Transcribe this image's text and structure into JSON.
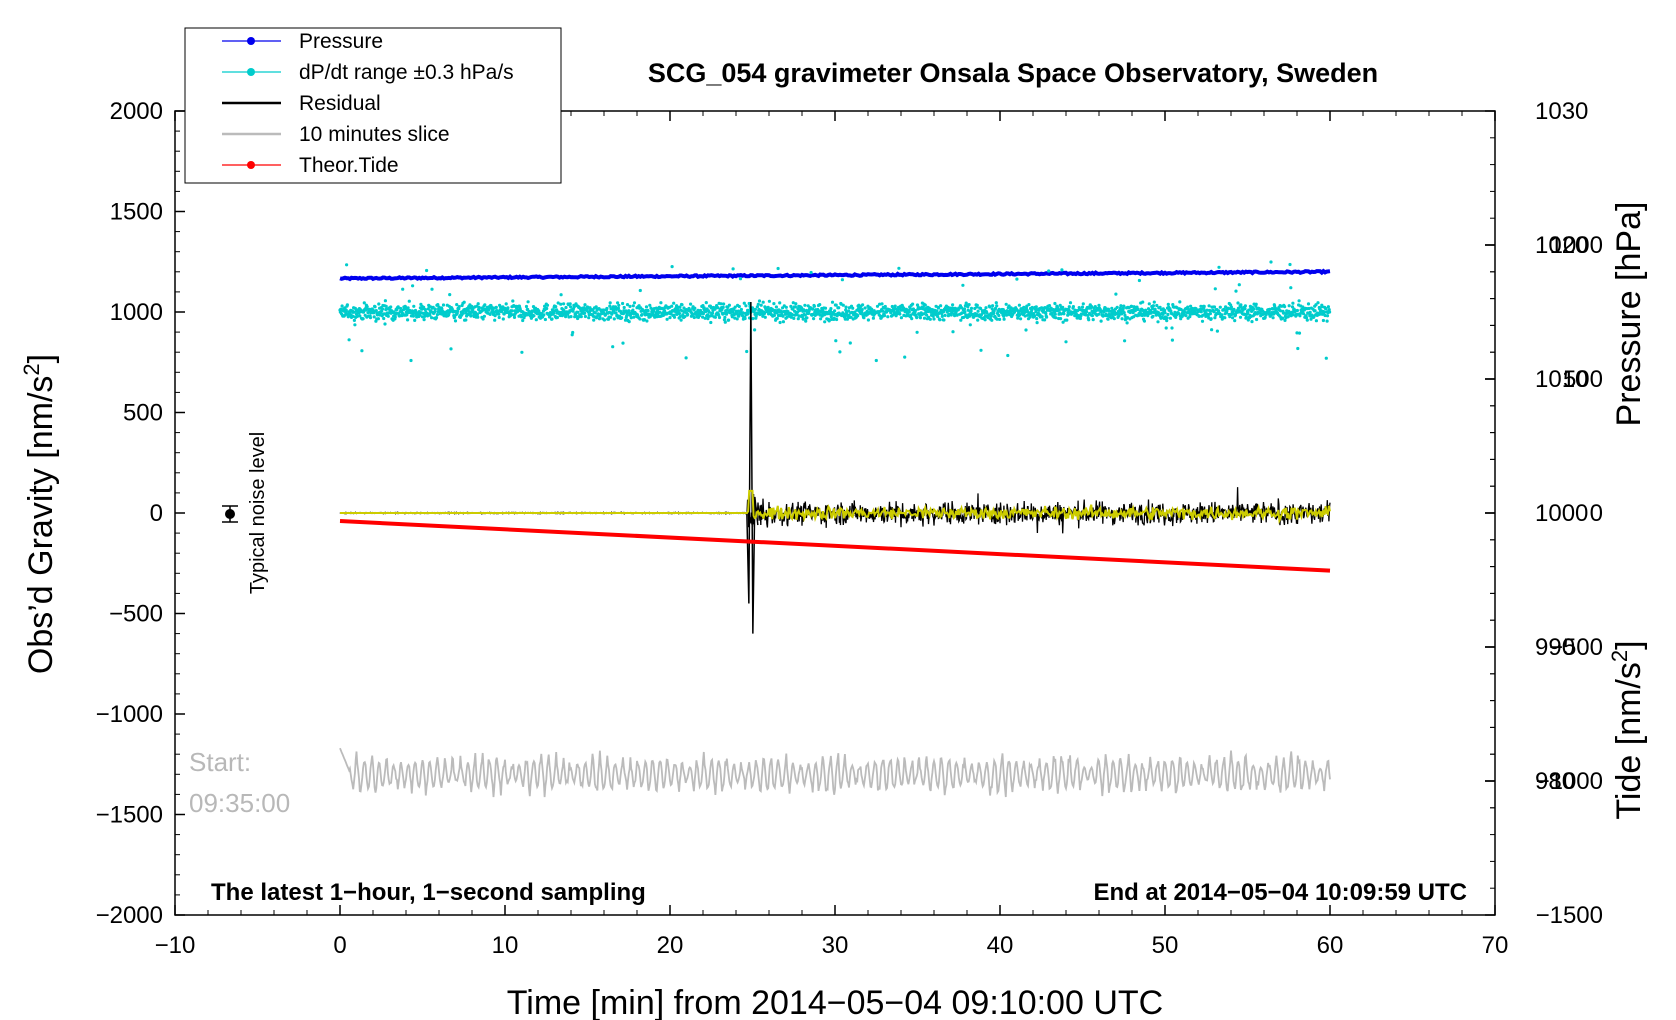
{
  "chart_data": {
    "type": "line",
    "title": "SCG_054 gravimeter Onsala Space Observatory, Sweden",
    "xlabel": "Time [min] from 2014−05−04 09:10:00 UTC",
    "ylabel_left": "Obs’d Gravity [nm/s²]",
    "ylabel_left_main": "Obs’d Gravity [nm/s",
    "ylabel_left_sup": "2",
    "ylabel_left_end": "]",
    "ylabel_right_pressure": "Pressure [hPa]",
    "ylabel_right_tide": "Tide [nm/s²]",
    "ylabel_right_tide_main": "Tide [nm/s",
    "ylabel_right_tide_sup": "2",
    "ylabel_right_tide_end": "]",
    "xlim": [
      -10,
      70
    ],
    "ylim": [
      -2000,
      2000
    ],
    "x_ticks": [
      -10,
      0,
      10,
      20,
      30,
      40,
      50,
      60,
      70
    ],
    "x_tick_labels": [
      "−10",
      "0",
      "10",
      "20",
      "30",
      "40",
      "50",
      "60",
      "70"
    ],
    "y_ticks": [
      2000,
      1500,
      1000,
      500,
      0,
      -500,
      -1000,
      -1500,
      -2000
    ],
    "y_tick_labels": [
      "2000",
      "1500",
      "1000",
      "500",
      "0",
      "−500",
      "−1000",
      "−1500",
      "−2000"
    ],
    "pressure_axis": {
      "range": [
        970,
        1030
      ],
      "ticks": [
        1030,
        1020,
        1010,
        1000,
        990,
        980
      ],
      "tick_labels": [
        "1030",
        "1020",
        "1010",
        "1000",
        "990",
        "980"
      ]
    },
    "tide_axis": {
      "range": [
        -1500,
        1500
      ],
      "ticks": [
        1000,
        500,
        0,
        -500,
        -1000,
        -1500
      ],
      "tick_labels": [
        "1000",
        "500",
        "0",
        "−500",
        "−1000",
        "−1500"
      ]
    },
    "legend_position": "top-left",
    "legend": [
      {
        "label": "Pressure",
        "color": "#0000ee",
        "marker": true
      },
      {
        "label": "dP/dt range ±0.3 hPa/s",
        "color": "#00cccc",
        "marker": true
      },
      {
        "label": "Residual",
        "color": "#000000",
        "marker": false
      },
      {
        "label": "10 minutes slice",
        "color": "#bbbbbb",
        "marker": false
      },
      {
        "label": "Theor.Tide",
        "color": "#ff0000",
        "marker": true
      }
    ],
    "series": [
      {
        "name": "Pressure",
        "axis": "pressure",
        "color": "#0000ee",
        "x": [
          0,
          60
        ],
        "values": [
          1017.5,
          1018.0
        ]
      },
      {
        "name": "dP/dt range ±0.3 hPa/s",
        "axis": "gravity",
        "color": "#00cccc",
        "x_range": [
          0,
          60
        ],
        "center": 1000,
        "spread": 40
      },
      {
        "name": "Residual",
        "axis": "gravity",
        "color": "#000000",
        "quiet_until": 24.7,
        "event_x": 24.9,
        "event_peak": 1050,
        "event_trough": -600,
        "noise_after": 60
      },
      {
        "name": "Residual (filtered)",
        "axis": "gravity",
        "color": "#cccc00"
      },
      {
        "name": "10 minutes slice",
        "axis": "gravity",
        "color": "#bbbbbb",
        "baseline": -1260
      },
      {
        "name": "Theor.Tide",
        "axis": "tide",
        "color": "#ff0000",
        "x": [
          0,
          60
        ],
        "values": [
          -30,
          -215
        ]
      }
    ],
    "noise_marker": {
      "x": -7,
      "y": 0,
      "label": "Typical noise level"
    },
    "start_label": "Start:",
    "start_time": "09:35:00",
    "footer_left": "The latest 1−hour, 1−second sampling",
    "footer_right": "End at 2014−05−04 10:09:59 UTC"
  }
}
